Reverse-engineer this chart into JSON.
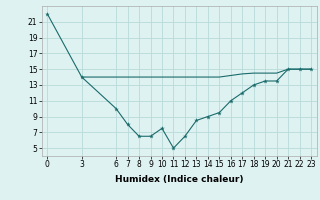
{
  "xlabel": "Humidex (Indice chaleur)",
  "bg_color": "#dff2f2",
  "grid_color": "#b8dada",
  "line_color": "#1a6b6b",
  "line1_x": [
    0,
    3,
    6,
    7,
    8,
    9,
    10,
    11,
    12,
    13,
    14,
    15,
    16,
    17,
    18,
    19,
    20,
    21,
    22,
    23
  ],
  "line1_y": [
    22,
    14,
    10,
    8,
    6.5,
    6.5,
    7.5,
    5,
    6.5,
    8.5,
    9,
    9.5,
    11,
    12,
    13,
    13.5,
    13.5,
    15,
    15,
    15
  ],
  "line2_x": [
    3,
    6,
    7,
    8,
    9,
    10,
    11,
    12,
    13,
    14,
    15,
    16,
    17,
    18,
    19,
    20,
    21,
    22,
    23
  ],
  "line2_y": [
    14,
    14,
    14,
    14,
    14,
    14,
    14,
    14,
    14,
    14,
    14,
    14.2,
    14.4,
    14.5,
    14.5,
    14.5,
    15,
    15,
    15
  ],
  "xlim": [
    -0.5,
    23.5
  ],
  "ylim": [
    4,
    23
  ],
  "yticks": [
    5,
    7,
    9,
    11,
    13,
    15,
    17,
    19,
    21
  ],
  "xticks": [
    0,
    3,
    6,
    7,
    8,
    9,
    10,
    11,
    12,
    13,
    14,
    15,
    16,
    17,
    18,
    19,
    20,
    21,
    22,
    23
  ],
  "tick_fontsize": 5.5,
  "xlabel_fontsize": 6.5
}
